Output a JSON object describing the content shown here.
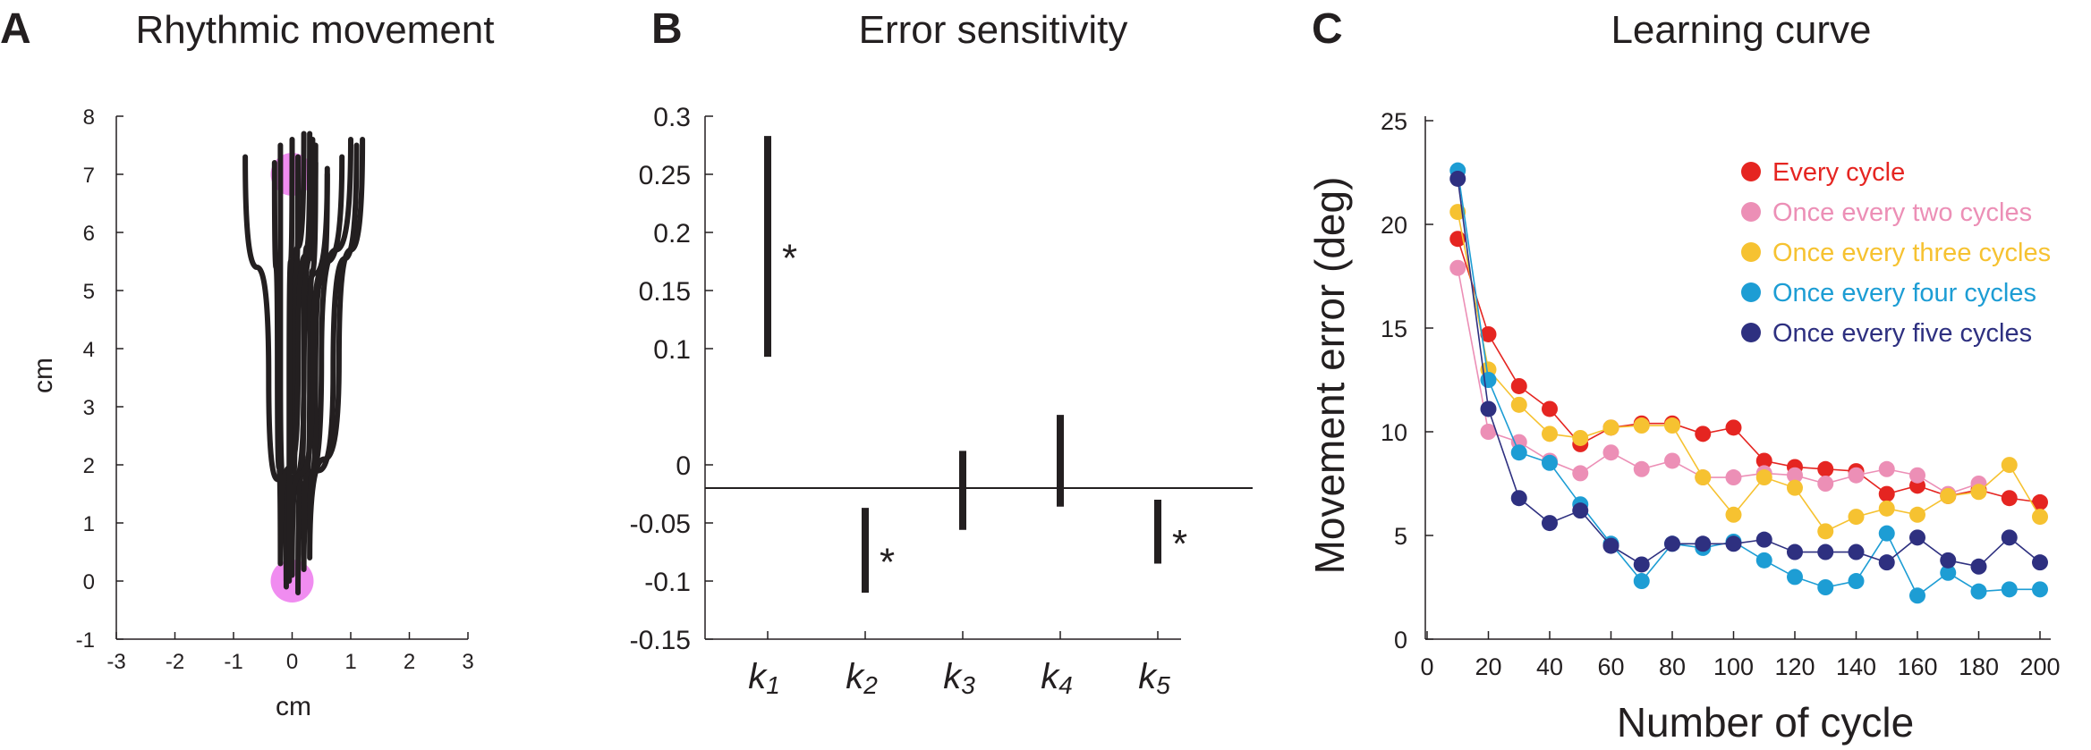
{
  "colors": {
    "axis": "#231f20",
    "trajectory": "#231f20",
    "target": "#f08cf0"
  },
  "chart_data": [
    {
      "panel": "A",
      "type": "line",
      "title": "Rhythmic movement",
      "xlabel": "cm",
      "ylabel": "cm",
      "xlim": [
        -3,
        3
      ],
      "ylim": [
        -1,
        8
      ],
      "xticks": [
        "-3",
        "-2",
        "-1",
        "0",
        "1",
        "2",
        "3"
      ],
      "yticks": [
        "-1",
        "0",
        "1",
        "2",
        "3",
        "4",
        "5",
        "6",
        "7",
        "8"
      ],
      "targets": [
        {
          "x": 0,
          "y": 7
        },
        {
          "x": 0,
          "y": 0
        }
      ],
      "series": [
        {
          "values": [
            [
              -0.8,
              7.3
            ],
            [
              -0.4,
              3.5
            ],
            [
              -0.1,
              0.0
            ],
            [
              0.2,
              3.5
            ],
            [
              0.6,
              7.1
            ]
          ]
        },
        {
          "values": [
            [
              -0.2,
              7.5
            ],
            [
              -0.2,
              3.5
            ],
            [
              -0.1,
              -0.1
            ],
            [
              0.0,
              3.8
            ],
            [
              0.2,
              7.7
            ]
          ]
        },
        {
          "values": [
            [
              0.1,
              7.3
            ],
            [
              0.05,
              3.5
            ],
            [
              0.0,
              0.1
            ],
            [
              0.2,
              3.6
            ],
            [
              0.4,
              7.5
            ]
          ]
        },
        {
          "values": [
            [
              0.3,
              7.7
            ],
            [
              0.2,
              3.8
            ],
            [
              0.1,
              -0.2
            ],
            [
              0.5,
              3.8
            ],
            [
              1.0,
              7.6
            ]
          ]
        },
        {
          "values": [
            [
              0.4,
              7.2
            ],
            [
              0.3,
              3.5
            ],
            [
              0.2,
              0.2
            ],
            [
              0.7,
              3.6
            ],
            [
              1.1,
              7.5
            ]
          ]
        },
        {
          "values": [
            [
              0.6,
              7.0
            ],
            [
              0.4,
              3.4
            ],
            [
              0.3,
              0.4
            ],
            [
              0.8,
              3.8
            ],
            [
              1.2,
              7.6
            ]
          ]
        },
        {
          "values": [
            [
              -0.3,
              7.2
            ],
            [
              -0.25,
              3.6
            ],
            [
              -0.2,
              0.3
            ],
            [
              0.1,
              3.6
            ],
            [
              0.35,
              7.6
            ]
          ]
        },
        {
          "values": [
            [
              0.0,
              7.6
            ],
            [
              -0.05,
              3.4
            ],
            [
              -0.05,
              0.0
            ],
            [
              0.35,
              3.7
            ],
            [
              0.85,
              7.3
            ]
          ]
        }
      ]
    },
    {
      "panel": "B",
      "type": "bar",
      "title": "Error sensitivity",
      "ylim": [
        -0.15,
        0.3
      ],
      "yticks": [
        "0.3",
        "0.25",
        "0.2",
        "0.15",
        "0.1",
        "0",
        "-0.05",
        "-0.1",
        "-0.15"
      ],
      "ytick_values": [
        0.3,
        0.25,
        0.2,
        0.15,
        0.1,
        0.0,
        -0.05,
        -0.1,
        -0.15
      ],
      "zero_line": -0.02,
      "categories": [
        {
          "base": "k",
          "sub": "1"
        },
        {
          "base": "k",
          "sub": "2"
        },
        {
          "base": "k",
          "sub": "3"
        },
        {
          "base": "k",
          "sub": "4"
        },
        {
          "base": "k",
          "sub": "5"
        }
      ],
      "intervals": [
        {
          "low": 0.093,
          "high": 0.283,
          "significant": true
        },
        {
          "low": -0.11,
          "high": -0.037,
          "significant": true
        },
        {
          "low": -0.056,
          "high": 0.012,
          "significant": false
        },
        {
          "low": -0.036,
          "high": 0.043,
          "significant": false
        },
        {
          "low": -0.085,
          "high": -0.03,
          "significant": true
        }
      ],
      "significance_marker": "*"
    },
    {
      "panel": "C",
      "type": "line",
      "title": "Learning curve",
      "xlabel": "Number of cycle",
      "ylabel": "Movement error (deg)",
      "xlim": [
        0,
        200
      ],
      "ylim": [
        0,
        25
      ],
      "xticks": [
        "0",
        "20",
        "40",
        "60",
        "80",
        "100",
        "120",
        "140",
        "160",
        "180",
        "200"
      ],
      "yticks": [
        "0",
        "5",
        "10",
        "15",
        "20",
        "25"
      ],
      "x": [
        10,
        20,
        30,
        40,
        50,
        60,
        70,
        80,
        90,
        100,
        110,
        120,
        130,
        140,
        150,
        160,
        170,
        180,
        190,
        200
      ],
      "legend_position": "top-right",
      "series": [
        {
          "name": "Every cycle",
          "color": "#e52521",
          "values": [
            19.3,
            14.7,
            12.2,
            11.1,
            9.4,
            10.2,
            10.4,
            10.4,
            9.9,
            10.2,
            8.6,
            8.3,
            8.2,
            8.1,
            7.0,
            7.4,
            6.9,
            7.2,
            6.8,
            6.6
          ]
        },
        {
          "name": "Once every two cycles",
          "color": "#ec8fb6",
          "values": [
            17.9,
            10.0,
            9.5,
            8.6,
            8.0,
            9.0,
            8.2,
            8.6,
            7.8,
            7.8,
            8.0,
            7.9,
            7.5,
            7.9,
            8.2,
            7.9,
            7.0,
            7.5,
            null,
            null
          ]
        },
        {
          "name": "Once every three cycles",
          "color": "#f6c231",
          "values": [
            20.6,
            13.0,
            11.3,
            9.9,
            9.7,
            10.2,
            10.3,
            10.3,
            7.8,
            6.0,
            7.8,
            7.3,
            5.2,
            5.9,
            6.3,
            6.0,
            6.9,
            7.1,
            8.4,
            5.9
          ]
        },
        {
          "name": "Once every four cycles",
          "color": "#1d9dd4",
          "values": [
            22.6,
            12.5,
            9.0,
            8.5,
            6.5,
            4.6,
            2.8,
            4.6,
            4.4,
            4.7,
            3.8,
            3.0,
            2.5,
            2.8,
            5.1,
            2.1,
            3.2,
            2.3,
            2.4,
            2.4
          ]
        },
        {
          "name": "Once every five cycles",
          "color": "#2e3080",
          "values": [
            22.2,
            11.1,
            6.8,
            5.6,
            6.2,
            4.5,
            3.6,
            4.6,
            4.6,
            4.6,
            4.8,
            4.2,
            4.2,
            4.2,
            3.7,
            4.9,
            3.8,
            3.5,
            4.9,
            3.7
          ]
        }
      ]
    }
  ],
  "panels": {
    "A": "A",
    "B": "B",
    "C": "C"
  }
}
